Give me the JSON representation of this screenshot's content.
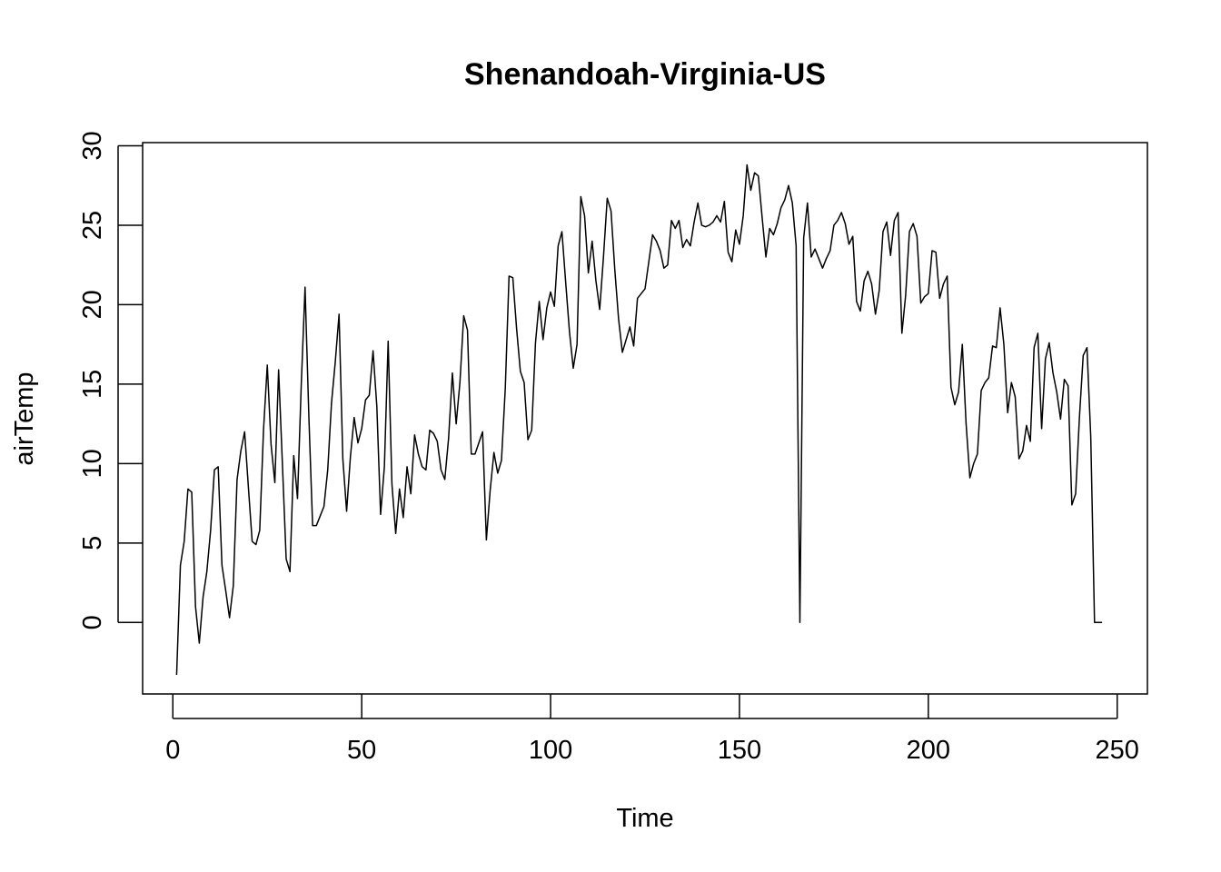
{
  "chart_data": {
    "type": "line",
    "title": "Shenandoah-Virginia-US",
    "xlabel": "Time",
    "ylabel": "airTemp",
    "xlim": [
      -8,
      258
    ],
    "ylim": [
      -4.5,
      30.2
    ],
    "xticks": [
      0,
      50,
      100,
      150,
      200,
      250
    ],
    "yticks": [
      0,
      5,
      10,
      15,
      20,
      25,
      30
    ],
    "grid": false,
    "legend": "none",
    "colors": {
      "line": "#000000",
      "axis": "#000000",
      "background": "#ffffff"
    },
    "series": [
      {
        "values": [
          -3.3,
          3.6,
          5.1,
          8.4,
          8.2,
          1.0,
          -1.3,
          1.6,
          3.2,
          5.8,
          9.6,
          9.8,
          3.6,
          2.0,
          0.3,
          2.3,
          9.0,
          10.8,
          12.0,
          8.5,
          5.1,
          4.9,
          5.8,
          12.1,
          16.2,
          11.2,
          8.8,
          15.9,
          10.0,
          4.0,
          3.2,
          10.5,
          7.8,
          15.0,
          21.1,
          13.0,
          6.1,
          6.1,
          6.7,
          7.3,
          9.6,
          13.8,
          16.4,
          19.4,
          10.3,
          7.0,
          10.4,
          12.9,
          11.3,
          12.2,
          14.0,
          14.3,
          17.1,
          13.6,
          6.8,
          9.8,
          17.7,
          8.7,
          5.6,
          8.4,
          6.6,
          9.8,
          8.1,
          11.8,
          10.6,
          9.8,
          9.6,
          12.1,
          11.9,
          11.4,
          9.6,
          9.0,
          11.6,
          15.7,
          12.5,
          15.1,
          19.3,
          18.4,
          10.6,
          10.6,
          11.3,
          12.0,
          5.2,
          8.3,
          10.7,
          9.4,
          10.2,
          14.7,
          21.8,
          21.7,
          18.5,
          15.8,
          15.1,
          11.5,
          12.1,
          17.6,
          20.2,
          17.8,
          19.8,
          20.8,
          19.9,
          23.7,
          24.6,
          21.4,
          18.3,
          16.0,
          17.5,
          26.8,
          25.6,
          22.0,
          24.0,
          21.5,
          19.7,
          23.0,
          26.7,
          25.9,
          22.2,
          19.1,
          17.0,
          17.8,
          18.6,
          17.4,
          20.4,
          20.7,
          21.0,
          22.7,
          24.4,
          24.0,
          23.4,
          22.3,
          22.5,
          25.3,
          24.8,
          25.3,
          23.6,
          24.1,
          23.7,
          25.2,
          26.4,
          25.0,
          24.9,
          25.0,
          25.2,
          25.6,
          25.2,
          26.5,
          23.3,
          22.7,
          24.7,
          23.8,
          25.6,
          28.8,
          27.2,
          28.3,
          28.1,
          25.5,
          23.0,
          24.8,
          24.4,
          25.1,
          26.1,
          26.6,
          27.5,
          26.4,
          23.7,
          0.0,
          24.2,
          26.4,
          23.0,
          23.5,
          22.9,
          22.3,
          22.9,
          23.4,
          25.0,
          25.3,
          25.8,
          25.1,
          23.8,
          24.3,
          20.2,
          19.6,
          21.5,
          22.1,
          21.3,
          19.4,
          20.9,
          24.6,
          25.2,
          23.1,
          25.3,
          25.8,
          18.2,
          20.6,
          24.6,
          25.1,
          24.3,
          20.1,
          20.5,
          20.7,
          23.4,
          23.3,
          20.4,
          21.3,
          21.8,
          14.8,
          13.7,
          14.5,
          17.5,
          12.5,
          9.1,
          10.0,
          10.6,
          14.6,
          15.1,
          15.4,
          17.4,
          17.3,
          19.8,
          17.5,
          13.2,
          15.1,
          14.2,
          10.3,
          10.8,
          12.4,
          11.4,
          17.3,
          18.2,
          12.2,
          16.6,
          17.6,
          15.7,
          14.5,
          12.8,
          15.3,
          14.9,
          7.4,
          8.1,
          12.9,
          16.8,
          17.3,
          11.7,
          0.0,
          0.0,
          0.0
        ]
      }
    ]
  }
}
